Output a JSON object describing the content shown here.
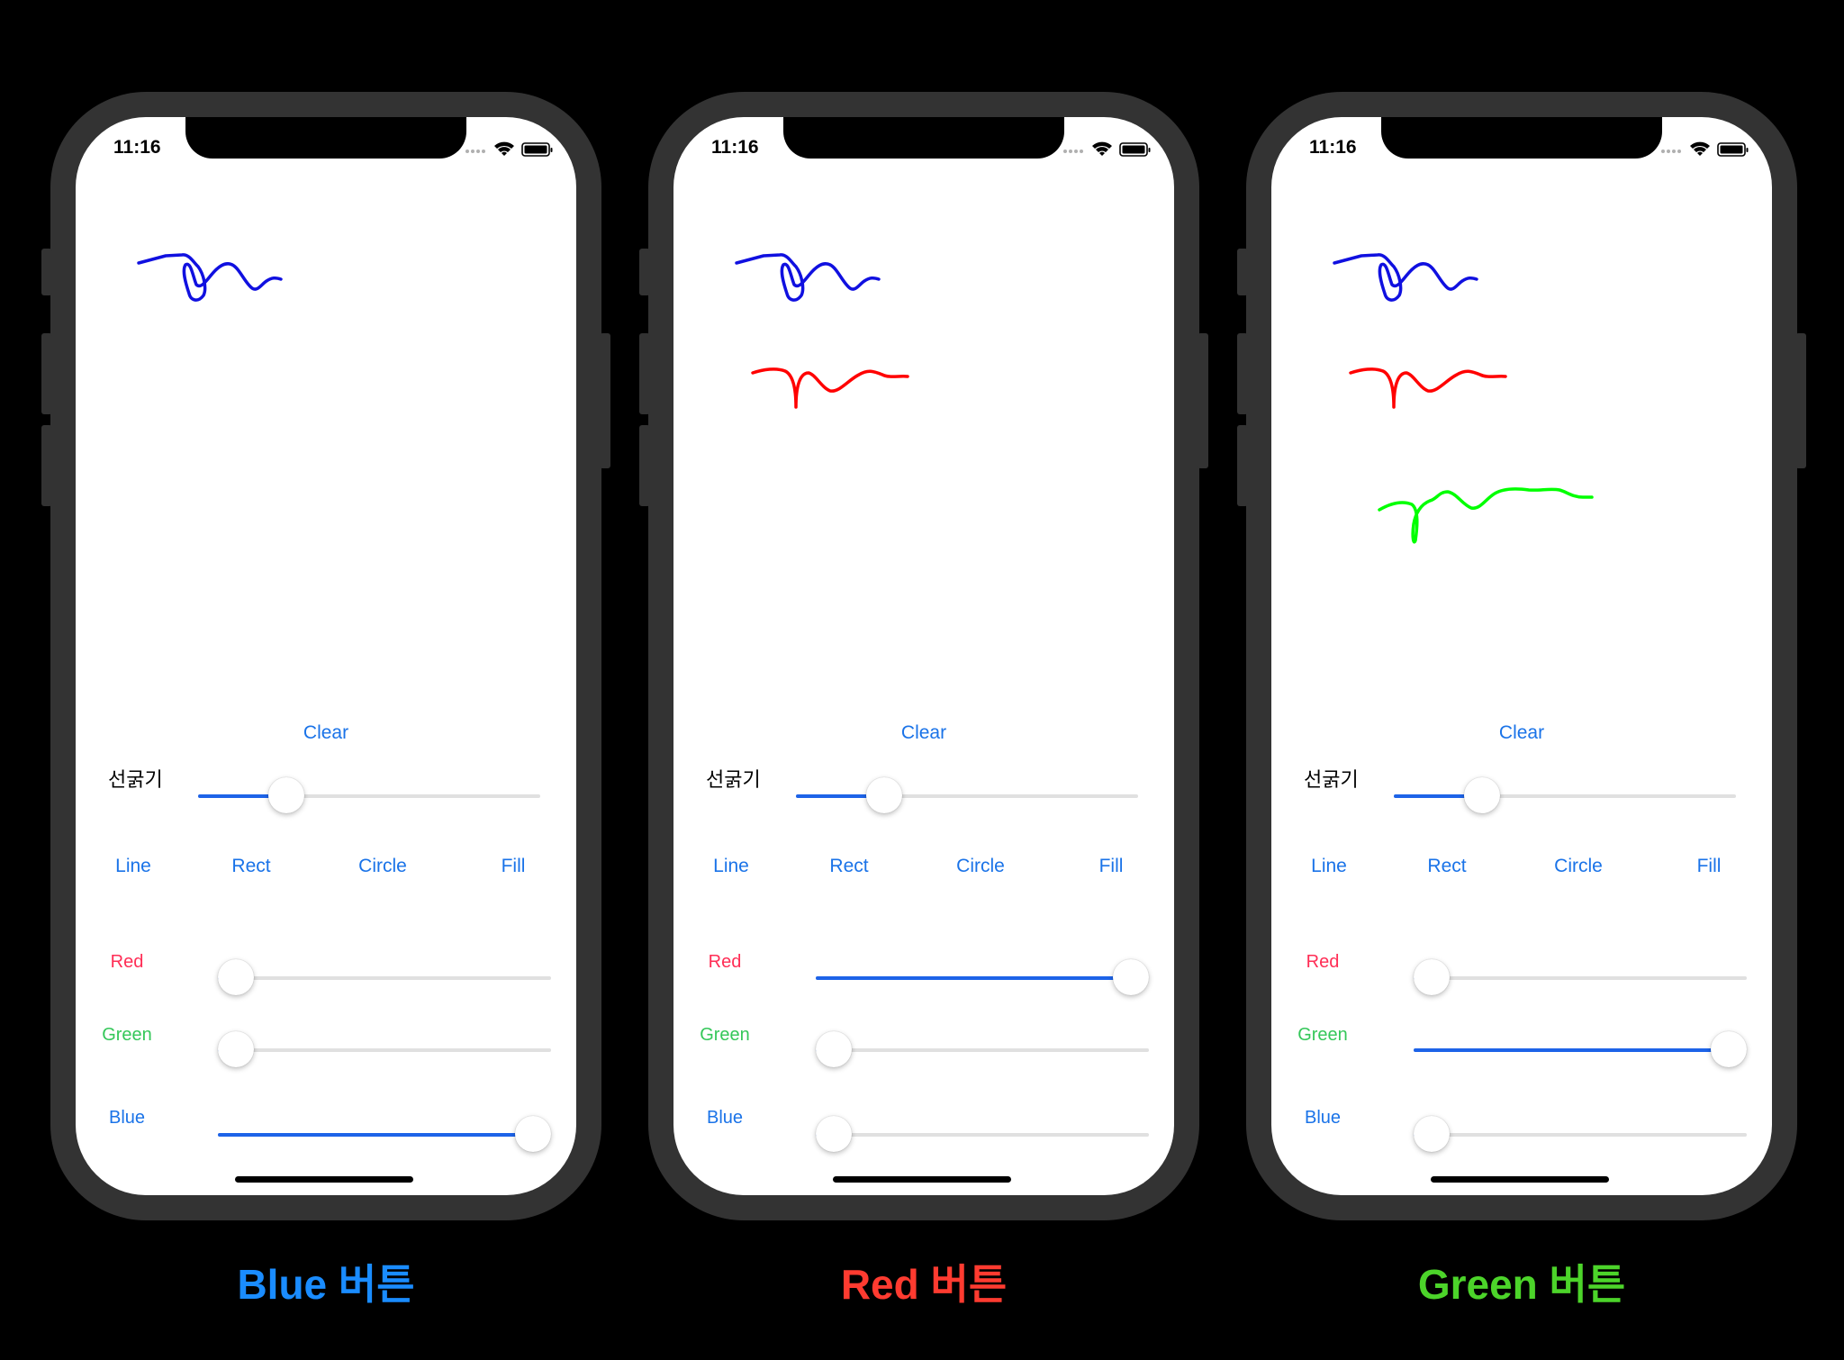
{
  "status": {
    "time": "11:16"
  },
  "controls": {
    "clear_label": "Clear",
    "stroke_label": "선굵기",
    "tools": [
      "Line",
      "Rect",
      "Circle",
      "Fill"
    ],
    "red_label": "Red",
    "green_label": "Green",
    "blue_label": "Blue"
  },
  "colors": {
    "accent": "#1a73e8",
    "red_label": "#ff2d55",
    "green_label": "#34c759",
    "blue_label": "#1a73e8",
    "stroke_blue": "#1010e0",
    "stroke_red": "#ff0000",
    "stroke_green": "#00ff00"
  },
  "phones": [
    {
      "caption": "Blue 버튼",
      "caption_color": "#1a8cff",
      "stroke_width_fraction": 0.23,
      "red_fraction": 0.0,
      "green_fraction": 0.0,
      "blue_fraction": 1.0,
      "strokes": [
        "blue"
      ]
    },
    {
      "caption": "Red 버튼",
      "caption_color": "#ff3b30",
      "stroke_width_fraction": 0.23,
      "red_fraction": 1.0,
      "green_fraction": 0.0,
      "blue_fraction": 0.0,
      "strokes": [
        "blue",
        "red"
      ]
    },
    {
      "caption": "Green 버튼",
      "caption_color": "#4cd42a",
      "stroke_width_fraction": 0.23,
      "red_fraction": 0.0,
      "green_fraction": 1.0,
      "blue_fraction": 0.0,
      "strokes": [
        "blue",
        "red",
        "green"
      ]
    }
  ]
}
